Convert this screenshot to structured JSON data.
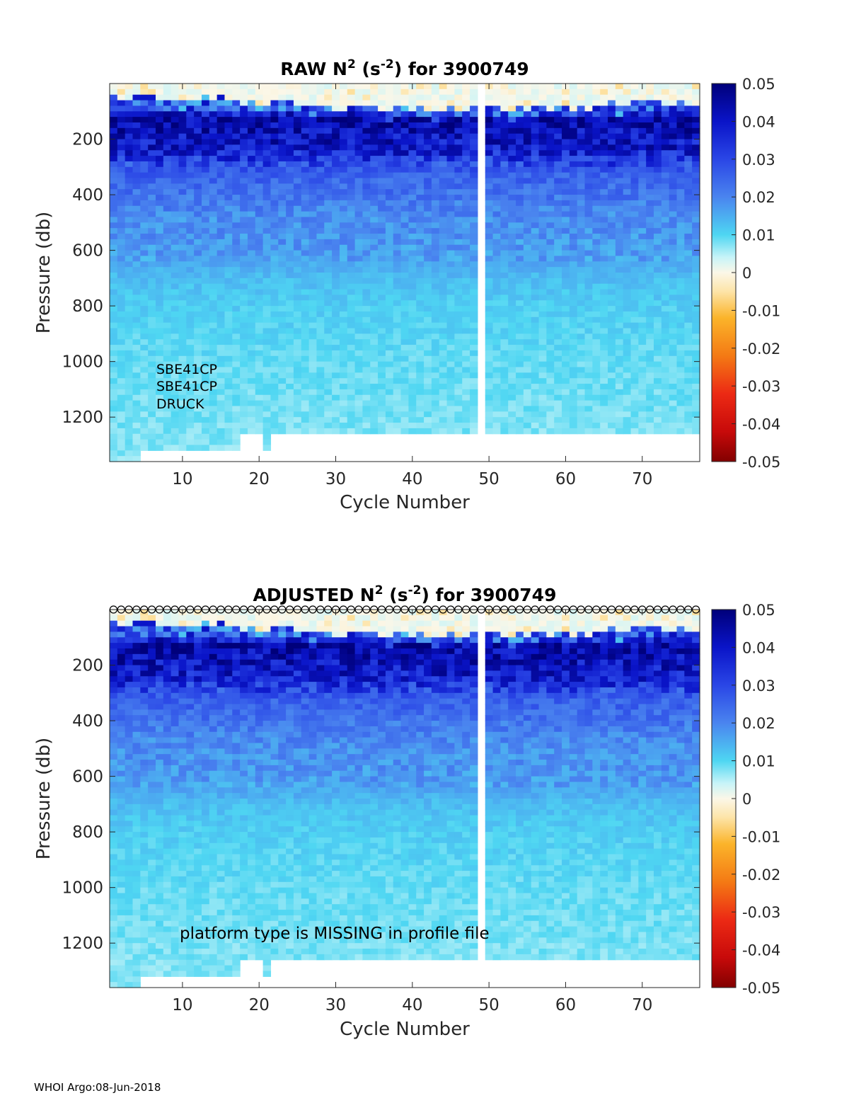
{
  "footer": "WHOI Argo:08-Jun-2018",
  "chart_data": [
    {
      "type": "heatmap",
      "title": "RAW N² (s⁻²) for 3900749",
      "title_parts": {
        "base": "RAW N",
        "sup1": "2",
        "mid": " (s",
        "sup2": "-2",
        "end": ") for 3900749"
      },
      "xlabel": "Cycle Number",
      "ylabel": "Pressure (db)",
      "xlim": [
        1,
        77
      ],
      "ylim": [
        0,
        1360
      ],
      "y_reversed": true,
      "xticks": [
        10,
        20,
        30,
        40,
        50,
        60,
        70
      ],
      "yticks": [
        200,
        400,
        600,
        800,
        1000,
        1200
      ],
      "colorbar": {
        "range": [
          -0.05,
          0.05
        ],
        "ticks": [
          "0.05",
          "0.04",
          "0.03",
          "0.02",
          "0.01",
          "0",
          "-0.01",
          "-0.02",
          "-0.03",
          "-0.04",
          "-0.05"
        ]
      },
      "missing_cycle": 49,
      "annotations": [
        "SBE41CP",
        "SBE41CP",
        "DRUCK"
      ],
      "qc_markers": false
    },
    {
      "type": "heatmap",
      "title": "ADJUSTED N² (s⁻²) for 3900749",
      "title_parts": {
        "base": "ADJUSTED N",
        "sup1": "2",
        "mid": " (s",
        "sup2": "-2",
        "end": ") for 3900749"
      },
      "xlabel": "Cycle Number",
      "ylabel": "Pressure (db)",
      "xlim": [
        1,
        77
      ],
      "ylim": [
        0,
        1360
      ],
      "y_reversed": true,
      "xticks": [
        10,
        20,
        30,
        40,
        50,
        60,
        70
      ],
      "yticks": [
        200,
        400,
        600,
        800,
        1000,
        1200
      ],
      "colorbar": {
        "range": [
          -0.05,
          0.05
        ],
        "ticks": [
          "0.05",
          "0.04",
          "0.03",
          "0.02",
          "0.01",
          "0",
          "-0.01",
          "-0.02",
          "-0.03",
          "-0.04",
          "-0.05"
        ]
      },
      "missing_cycle": 49,
      "annotations": [
        "platform type is MISSING in profile file"
      ],
      "qc_markers": true
    }
  ],
  "profile_structure": {
    "cycles": 77,
    "bottom_pressure_default": 1260,
    "deep_cycles_1_to_4": 1360,
    "deep_cycles_5_to_17": 1310,
    "deep_cycles_18_20": 1260,
    "deep_cycle_21": 1310,
    "n2_by_depth": [
      {
        "p": 0,
        "n2": 0.0
      },
      {
        "p": 60,
        "n2": 0.005
      },
      {
        "p": 120,
        "n2": 0.045
      },
      {
        "p": 240,
        "n2": 0.038
      },
      {
        "p": 320,
        "n2": 0.026
      },
      {
        "p": 480,
        "n2": 0.019
      },
      {
        "p": 620,
        "n2": 0.017
      },
      {
        "p": 700,
        "n2": 0.013
      },
      {
        "p": 800,
        "n2": 0.011
      },
      {
        "p": 1000,
        "n2": 0.009
      },
      {
        "p": 1360,
        "n2": 0.007
      }
    ]
  }
}
